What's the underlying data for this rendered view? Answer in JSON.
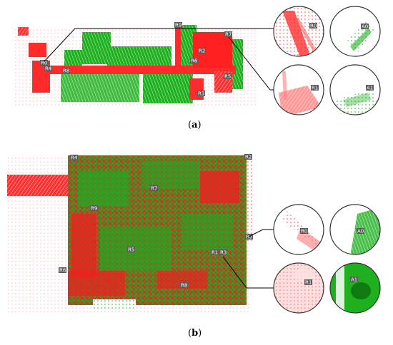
{
  "panel_a": {
    "caption_open": "(",
    "caption_letter": "a",
    "caption_close": ")",
    "map_labels": [
      "R0",
      "R4",
      "R8",
      "R9",
      "R7",
      "R2",
      "R6",
      "R5",
      "R3"
    ],
    "zoom_labels": {
      "top_left": "R0",
      "top_right": "A0",
      "bottom_left": "R1",
      "bottom_right": "A1"
    }
  },
  "panel_b": {
    "caption_open": "(",
    "caption_letter": "b",
    "caption_close": ")",
    "map_labels": [
      "R4",
      "R2",
      "R7",
      "R9",
      "R0",
      "R5",
      "R1",
      "R3",
      "R6",
      "R8"
    ],
    "zoom_labels": {
      "top_left": "R0",
      "top_right": "A0",
      "bottom_left": "R1",
      "bottom_right": "A1"
    }
  },
  "colors": {
    "source_cloud": "#ff1a1a",
    "target_cloud": "#14b414",
    "label_bg": "#5a5a5a"
  }
}
